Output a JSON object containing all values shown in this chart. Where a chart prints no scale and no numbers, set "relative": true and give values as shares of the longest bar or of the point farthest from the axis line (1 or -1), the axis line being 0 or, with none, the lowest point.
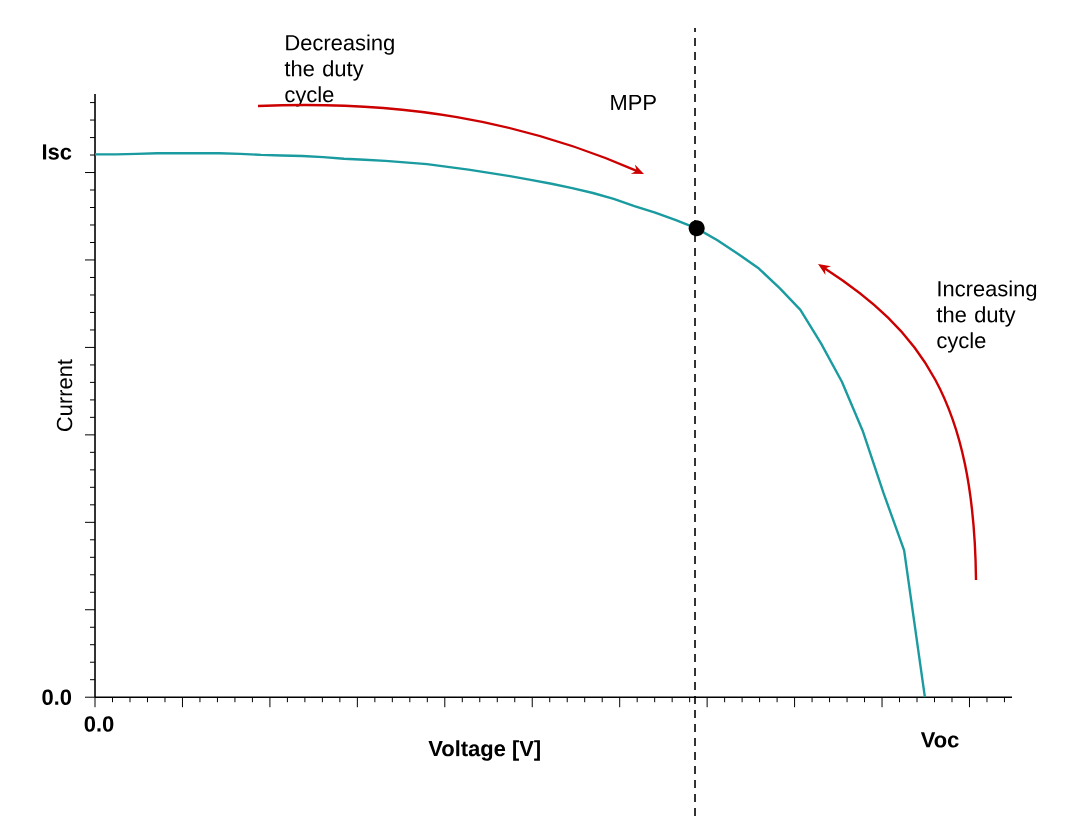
{
  "chart_data": {
    "type": "line",
    "xlabel": "Voltage [V]",
    "ylabel": "Current",
    "relative": true,
    "categories": [
      null,
      null,
      null,
      null,
      null,
      null,
      null,
      null,
      null,
      null,
      null,
      null,
      null,
      null,
      null,
      null,
      null,
      null,
      null,
      null,
      null,
      null,
      null,
      null,
      null,
      null,
      null,
      null,
      null,
      null,
      null,
      null,
      null,
      null,
      null,
      null,
      null,
      null,
      null,
      null,
      null
    ],
    "series": [
      {
        "type": "line",
        "color": "#1a9ba0",
        "marker": "none",
        "values": [
          0.998,
          0.998,
          0.999,
          1,
          1,
          1,
          1,
          0.999,
          0.997,
          0.996,
          0.995,
          0.993,
          0.99,
          0.988,
          0.986,
          0.983,
          0.98,
          0.975,
          0.97,
          0.964,
          0.958,
          0.951,
          0.944,
          0.936,
          0.927,
          0.916,
          0.903,
          0.891,
          0.877,
          0.862,
          0.84,
          0.815,
          0.788,
          0.752,
          0.712,
          0.65,
          0.58,
          0.49,
          0.376,
          0.27,
          0
        ]
      }
    ],
    "annotations": [
      "Decreasing the duty cycle",
      "Increasing the duty cycle",
      "Isc",
      "0.0",
      "0.0",
      "Voc",
      "MPP"
    ]
  }
}
